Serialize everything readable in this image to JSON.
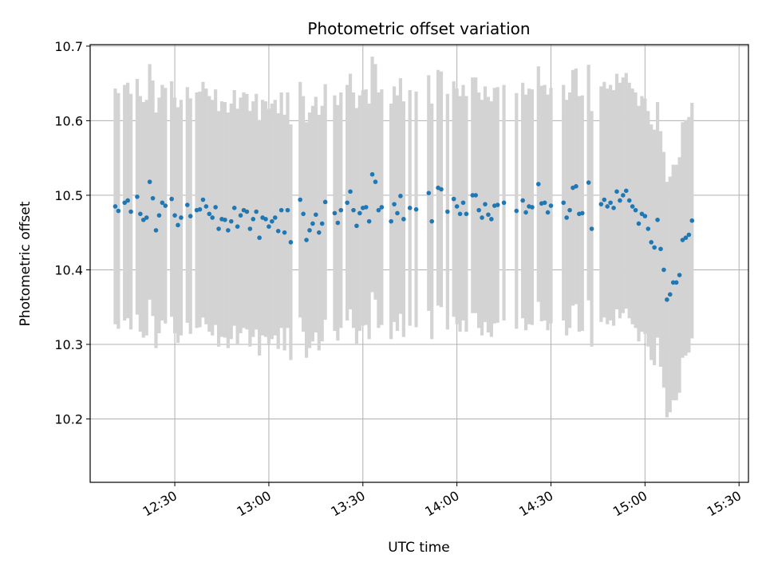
{
  "chart_data": {
    "type": "scatter",
    "title": "Photometric offset variation",
    "xlabel": "UTC time",
    "ylabel": "Photometric offset",
    "x_ticks": [
      "12:30",
      "13:00",
      "13:30",
      "14:00",
      "14:30",
      "15:00",
      "15:30"
    ],
    "y_ticks": [
      "10.2",
      "10.3",
      "10.4",
      "10.5",
      "10.6",
      "10.7"
    ],
    "xlim": [
      "12:03",
      "15:33"
    ],
    "ylim": [
      10.115,
      10.702
    ],
    "grid": true,
    "colors": {
      "points": "#1f77b4",
      "error_bars": "#d3d3d3"
    },
    "series": [
      {
        "points": [
          {
            "x": "12:11",
            "y": 10.485,
            "err": 0.158
          },
          {
            "x": "12:12",
            "y": 10.479,
            "err": 0.158
          },
          {
            "x": "12:14",
            "y": 10.49,
            "err": 0.158
          },
          {
            "x": "12:15",
            "y": 10.493,
            "err": 0.158
          },
          {
            "x": "12:16",
            "y": 10.478,
            "err": 0.158
          },
          {
            "x": "12:18",
            "y": 10.498,
            "err": 0.158
          },
          {
            "x": "12:19",
            "y": 10.475,
            "err": 0.158
          },
          {
            "x": "12:20",
            "y": 10.467,
            "err": 0.158
          },
          {
            "x": "12:21",
            "y": 10.47,
            "err": 0.158
          },
          {
            "x": "12:22",
            "y": 10.518,
            "err": 0.158
          },
          {
            "x": "12:23",
            "y": 10.496,
            "err": 0.158
          },
          {
            "x": "12:24",
            "y": 10.453,
            "err": 0.158
          },
          {
            "x": "12:25",
            "y": 10.473,
            "err": 0.158
          },
          {
            "x": "12:26",
            "y": 10.49,
            "err": 0.158
          },
          {
            "x": "12:27",
            "y": 10.486,
            "err": 0.158
          },
          {
            "x": "12:29",
            "y": 10.495,
            "err": 0.158
          },
          {
            "x": "12:30",
            "y": 10.473,
            "err": 0.158
          },
          {
            "x": "12:31",
            "y": 10.46,
            "err": 0.158
          },
          {
            "x": "12:32",
            "y": 10.47,
            "err": 0.158
          },
          {
            "x": "12:34",
            "y": 10.487,
            "err": 0.158
          },
          {
            "x": "12:35",
            "y": 10.472,
            "err": 0.158
          },
          {
            "x": "12:37",
            "y": 10.48,
            "err": 0.158
          },
          {
            "x": "12:38",
            "y": 10.481,
            "err": 0.158
          },
          {
            "x": "12:39",
            "y": 10.494,
            "err": 0.158
          },
          {
            "x": "12:40",
            "y": 10.485,
            "err": 0.158
          },
          {
            "x": "12:41",
            "y": 10.475,
            "err": 0.158
          },
          {
            "x": "12:42",
            "y": 10.47,
            "err": 0.158
          },
          {
            "x": "12:43",
            "y": 10.484,
            "err": 0.158
          },
          {
            "x": "12:44",
            "y": 10.455,
            "err": 0.158
          },
          {
            "x": "12:45",
            "y": 10.468,
            "err": 0.158
          },
          {
            "x": "12:46",
            "y": 10.467,
            "err": 0.158
          },
          {
            "x": "12:47",
            "y": 10.453,
            "err": 0.158
          },
          {
            "x": "12:48",
            "y": 10.465,
            "err": 0.158
          },
          {
            "x": "12:49",
            "y": 10.483,
            "err": 0.158
          },
          {
            "x": "12:50",
            "y": 10.458,
            "err": 0.158
          },
          {
            "x": "12:51",
            "y": 10.473,
            "err": 0.158
          },
          {
            "x": "12:52",
            "y": 10.48,
            "err": 0.158
          },
          {
            "x": "12:53",
            "y": 10.478,
            "err": 0.158
          },
          {
            "x": "12:54",
            "y": 10.455,
            "err": 0.158
          },
          {
            "x": "12:55",
            "y": 10.468,
            "err": 0.158
          },
          {
            "x": "12:56",
            "y": 10.478,
            "err": 0.158
          },
          {
            "x": "12:57",
            "y": 10.443,
            "err": 0.158
          },
          {
            "x": "12:58",
            "y": 10.47,
            "err": 0.158
          },
          {
            "x": "12:59",
            "y": 10.468,
            "err": 0.158
          },
          {
            "x": "13:00",
            "y": 10.458,
            "err": 0.158
          },
          {
            "x": "13:01",
            "y": 10.465,
            "err": 0.158
          },
          {
            "x": "13:02",
            "y": 10.47,
            "err": 0.158
          },
          {
            "x": "13:03",
            "y": 10.452,
            "err": 0.158
          },
          {
            "x": "13:04",
            "y": 10.48,
            "err": 0.158
          },
          {
            "x": "13:05",
            "y": 10.45,
            "err": 0.158
          },
          {
            "x": "13:06",
            "y": 10.48,
            "err": 0.158
          },
          {
            "x": "13:07",
            "y": 10.437,
            "err": 0.158
          },
          {
            "x": "13:10",
            "y": 10.494,
            "err": 0.158
          },
          {
            "x": "13:11",
            "y": 10.475,
            "err": 0.158
          },
          {
            "x": "13:12",
            "y": 10.44,
            "err": 0.158
          },
          {
            "x": "13:13",
            "y": 10.453,
            "err": 0.158
          },
          {
            "x": "13:14",
            "y": 10.462,
            "err": 0.158
          },
          {
            "x": "13:15",
            "y": 10.474,
            "err": 0.158
          },
          {
            "x": "13:16",
            "y": 10.45,
            "err": 0.158
          },
          {
            "x": "13:17",
            "y": 10.462,
            "err": 0.158
          },
          {
            "x": "13:18",
            "y": 10.491,
            "err": 0.158
          },
          {
            "x": "13:21",
            "y": 10.476,
            "err": 0.158
          },
          {
            "x": "13:22",
            "y": 10.463,
            "err": 0.158
          },
          {
            "x": "13:23",
            "y": 10.48,
            "err": 0.158
          },
          {
            "x": "13:25",
            "y": 10.49,
            "err": 0.158
          },
          {
            "x": "13:26",
            "y": 10.505,
            "err": 0.158
          },
          {
            "x": "13:27",
            "y": 10.48,
            "err": 0.158
          },
          {
            "x": "13:28",
            "y": 10.459,
            "err": 0.158
          },
          {
            "x": "13:29",
            "y": 10.476,
            "err": 0.158
          },
          {
            "x": "13:30",
            "y": 10.483,
            "err": 0.158
          },
          {
            "x": "13:31",
            "y": 10.484,
            "err": 0.158
          },
          {
            "x": "13:32",
            "y": 10.465,
            "err": 0.158
          },
          {
            "x": "13:33",
            "y": 10.528,
            "err": 0.158
          },
          {
            "x": "13:34",
            "y": 10.518,
            "err": 0.158
          },
          {
            "x": "13:35",
            "y": 10.48,
            "err": 0.158
          },
          {
            "x": "13:36",
            "y": 10.484,
            "err": 0.158
          },
          {
            "x": "13:39",
            "y": 10.465,
            "err": 0.158
          },
          {
            "x": "13:40",
            "y": 10.488,
            "err": 0.158
          },
          {
            "x": "13:41",
            "y": 10.476,
            "err": 0.158
          },
          {
            "x": "13:42",
            "y": 10.499,
            "err": 0.158
          },
          {
            "x": "13:43",
            "y": 10.468,
            "err": 0.158
          },
          {
            "x": "13:45",
            "y": 10.483,
            "err": 0.158
          },
          {
            "x": "13:47",
            "y": 10.481,
            "err": 0.158
          },
          {
            "x": "13:51",
            "y": 10.503,
            "err": 0.158
          },
          {
            "x": "13:52",
            "y": 10.465,
            "err": 0.158
          },
          {
            "x": "13:54",
            "y": 10.51,
            "err": 0.158
          },
          {
            "x": "13:55",
            "y": 10.508,
            "err": 0.158
          },
          {
            "x": "13:57",
            "y": 10.478,
            "err": 0.158
          },
          {
            "x": "13:59",
            "y": 10.495,
            "err": 0.158
          },
          {
            "x": "14:00",
            "y": 10.485,
            "err": 0.158
          },
          {
            "x": "14:01",
            "y": 10.475,
            "err": 0.158
          },
          {
            "x": "14:02",
            "y": 10.49,
            "err": 0.158
          },
          {
            "x": "14:03",
            "y": 10.475,
            "err": 0.158
          },
          {
            "x": "14:05",
            "y": 10.5,
            "err": 0.158
          },
          {
            "x": "14:06",
            "y": 10.5,
            "err": 0.158
          },
          {
            "x": "14:07",
            "y": 10.48,
            "err": 0.158
          },
          {
            "x": "14:08",
            "y": 10.47,
            "err": 0.158
          },
          {
            "x": "14:09",
            "y": 10.488,
            "err": 0.158
          },
          {
            "x": "14:10",
            "y": 10.474,
            "err": 0.158
          },
          {
            "x": "14:11",
            "y": 10.468,
            "err": 0.158
          },
          {
            "x": "14:12",
            "y": 10.486,
            "err": 0.158
          },
          {
            "x": "14:13",
            "y": 10.487,
            "err": 0.158
          },
          {
            "x": "14:15",
            "y": 10.49,
            "err": 0.158
          },
          {
            "x": "14:19",
            "y": 10.479,
            "err": 0.158
          },
          {
            "x": "14:21",
            "y": 10.493,
            "err": 0.158
          },
          {
            "x": "14:22",
            "y": 10.477,
            "err": 0.158
          },
          {
            "x": "14:23",
            "y": 10.485,
            "err": 0.158
          },
          {
            "x": "14:24",
            "y": 10.484,
            "err": 0.158
          },
          {
            "x": "14:26",
            "y": 10.515,
            "err": 0.158
          },
          {
            "x": "14:27",
            "y": 10.489,
            "err": 0.158
          },
          {
            "x": "14:28",
            "y": 10.49,
            "err": 0.158
          },
          {
            "x": "14:29",
            "y": 10.477,
            "err": 0.158
          },
          {
            "x": "14:30",
            "y": 10.486,
            "err": 0.158
          },
          {
            "x": "14:34",
            "y": 10.49,
            "err": 0.158
          },
          {
            "x": "14:35",
            "y": 10.47,
            "err": 0.158
          },
          {
            "x": "14:36",
            "y": 10.48,
            "err": 0.158
          },
          {
            "x": "14:37",
            "y": 10.51,
            "err": 0.158
          },
          {
            "x": "14:38",
            "y": 10.512,
            "err": 0.158
          },
          {
            "x": "14:39",
            "y": 10.475,
            "err": 0.158
          },
          {
            "x": "14:40",
            "y": 10.476,
            "err": 0.158
          },
          {
            "x": "14:42",
            "y": 10.517,
            "err": 0.158
          },
          {
            "x": "14:43",
            "y": 10.455,
            "err": 0.158
          },
          {
            "x": "14:46",
            "y": 10.488,
            "err": 0.158
          },
          {
            "x": "14:47",
            "y": 10.494,
            "err": 0.158
          },
          {
            "x": "14:48",
            "y": 10.485,
            "err": 0.158
          },
          {
            "x": "14:49",
            "y": 10.49,
            "err": 0.158
          },
          {
            "x": "14:50",
            "y": 10.483,
            "err": 0.158
          },
          {
            "x": "14:51",
            "y": 10.505,
            "err": 0.158
          },
          {
            "x": "14:52",
            "y": 10.493,
            "err": 0.158
          },
          {
            "x": "14:53",
            "y": 10.5,
            "err": 0.158
          },
          {
            "x": "14:54",
            "y": 10.506,
            "err": 0.158
          },
          {
            "x": "14:55",
            "y": 10.493,
            "err": 0.158
          },
          {
            "x": "14:56",
            "y": 10.485,
            "err": 0.158
          },
          {
            "x": "14:57",
            "y": 10.48,
            "err": 0.158
          },
          {
            "x": "14:58",
            "y": 10.462,
            "err": 0.158
          },
          {
            "x": "14:59",
            "y": 10.475,
            "err": 0.158
          },
          {
            "x": "15:00",
            "y": 10.472,
            "err": 0.158
          },
          {
            "x": "15:01",
            "y": 10.455,
            "err": 0.158
          },
          {
            "x": "15:02",
            "y": 10.437,
            "err": 0.158
          },
          {
            "x": "15:03",
            "y": 10.43,
            "err": 0.158
          },
          {
            "x": "15:04",
            "y": 10.467,
            "err": 0.158
          },
          {
            "x": "15:05",
            "y": 10.428,
            "err": 0.158
          },
          {
            "x": "15:06",
            "y": 10.4,
            "err": 0.158
          },
          {
            "x": "15:07",
            "y": 10.36,
            "err": 0.158
          },
          {
            "x": "15:08",
            "y": 10.367,
            "err": 0.158
          },
          {
            "x": "15:09",
            "y": 10.383,
            "err": 0.158
          },
          {
            "x": "15:10",
            "y": 10.383,
            "err": 0.158
          },
          {
            "x": "15:11",
            "y": 10.393,
            "err": 0.158
          },
          {
            "x": "15:12",
            "y": 10.44,
            "err": 0.158
          },
          {
            "x": "15:13",
            "y": 10.443,
            "err": 0.158
          },
          {
            "x": "15:14",
            "y": 10.447,
            "err": 0.158
          },
          {
            "x": "15:15",
            "y": 10.466,
            "err": 0.158
          }
        ]
      }
    ]
  }
}
